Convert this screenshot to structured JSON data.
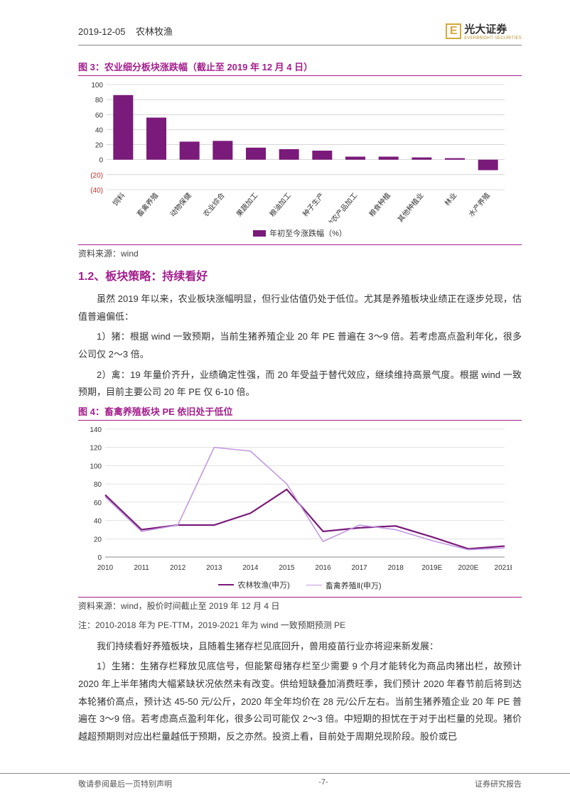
{
  "header": {
    "date": "2019-12-05",
    "category": "农林牧渔",
    "company_cn": "光大证券",
    "company_en": "EVERBRIGHT SECURITIES"
  },
  "fig3": {
    "title": "图 3：农业细分板块涨跌幅（截止至 2019 年 12 月 4 日）",
    "type": "bar",
    "categories": [
      "饲料",
      "畜禽养殖",
      "动物保健",
      "农业综合",
      "果蔬加工",
      "粮油加工",
      "种子生产",
      "其他农产品加工",
      "粮食种植",
      "其他种植业",
      "林业",
      "水产养殖"
    ],
    "values": [
      86,
      56,
      24,
      25,
      16,
      14,
      12,
      4,
      4,
      3,
      2,
      -14
    ],
    "bar_color": "#7a1a7a",
    "ylim": [
      -40,
      100
    ],
    "ytick_step": 20,
    "y_neg_color": "#c0302b",
    "grid_color": "#bfbfbf",
    "legend": "年初至今涨跌幅（%）",
    "source": "资料来源：wind"
  },
  "section": {
    "title": "1.2、板块策略：持续看好",
    "p1": "虽然 2019 年以来，农业板块涨幅明显，但行业估值仍处于低位。尤其是养殖板块业绩正在逐步兑现，估值普遍偏低：",
    "p2": "1）猪：根据 wind 一致预期，当前生猪养殖企业 20 年 PE 普遍在 3～9 倍。若考虑高点盈利年化，很多公司仅 2～3 倍。",
    "p3": "2）禽：19 年量价齐升，业绩确定性强，而 20 年受益于替代效应，继续维持高景气度。根据 wind 一致预期，目前主要公司 20 年 PE 仅 6-10 倍。"
  },
  "fig4": {
    "title": "图 4：畜禽养殖板块 PE 依旧处于低位",
    "type": "line",
    "x_categories": [
      "2010",
      "2011",
      "2012",
      "2013",
      "2014",
      "2015",
      "2016",
      "2017",
      "2018",
      "2019E",
      "2020E",
      "2021E"
    ],
    "series": [
      {
        "name": "农林牧渔(申万)",
        "color": "#7a1a7a",
        "width": 2.2,
        "values": [
          68,
          30,
          35,
          35,
          48,
          74,
          28,
          32,
          34,
          22,
          9,
          12
        ]
      },
      {
        "name": "畜禽养殖Ⅱ(申万)",
        "color": "#c29ae0",
        "width": 1.6,
        "values": [
          66,
          28,
          35,
          120,
          116,
          80,
          17,
          35,
          30,
          18,
          8,
          10
        ]
      }
    ],
    "ylim": [
      0,
      140
    ],
    "ytick_step": 20,
    "grid_color": "#d0d0d0",
    "source": "资料来源：wind，股价时间截止至 2019 年 12 月 4 日",
    "note": "注：2010-2018 年为 PE-TTM，2019-2021 年为 wind 一致预期预测 PE"
  },
  "body_after": {
    "p4": "我们持续看好养殖板块，且随着生猪存栏见底回升，兽用疫苗行业亦将迎来新发展：",
    "p5": "1）生猪：生猪存栏释放见底信号，但能繁母猪存栏至少需要 9 个月才能转化为商品肉猪出栏，故预计 2020 年上半年猪肉大幅紧缺状况依然未有改变。供给短缺叠加消费旺季，我们预计 2020 年春节前后将到达本轮猪价高点，预计达 45-50 元/公斤，2020 年全年均价在 28 元/公斤左右。当前生猪养殖企业 20 年 PE 普遍在 3～9 倍。若考虑高点盈利年化，很多公司可能仅 2～3 倍。中短期的担忧在于对于出栏量的兑现。猪价越超预期则对应出栏量越低于预期，反之亦然。投资上看，目前处于周期兑现阶段。股价或已"
  },
  "footer": {
    "left": "敬请参阅最后一页特别声明",
    "center": "-7-",
    "right": "证券研究报告"
  }
}
